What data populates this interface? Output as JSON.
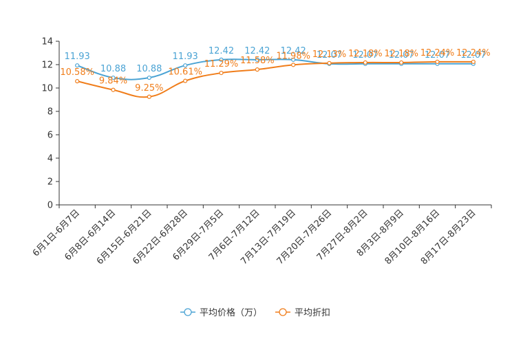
{
  "chart_data": {
    "type": "line",
    "title": "",
    "xlabel": "",
    "ylabel": "",
    "ylim": [
      0,
      14
    ],
    "yticks": [
      0,
      2,
      4,
      6,
      8,
      10,
      12,
      14
    ],
    "grid": false,
    "legend_position": "bottom-center",
    "categories": [
      "6月1日-6月7日",
      "6月8日-6月14日",
      "6月15日-6月21日",
      "6月22日-6月28日",
      "6月29日-7月5日",
      "7月6日-7月12日",
      "7月13日-7月19日",
      "7月20日-7月26日",
      "7月27日-8月2日",
      "8月3日-8月9日",
      "8月10日-8月16日",
      "8月17日-8月23日"
    ],
    "series": [
      {
        "name": "平均价格（万）",
        "color": "#4aa3d4",
        "values": [
          11.93,
          10.88,
          10.88,
          11.93,
          12.42,
          12.42,
          12.42,
          12.07,
          12.07,
          12.07,
          12.07,
          12.07
        ],
        "labels": [
          "11.93",
          "10.88",
          "10.88",
          "11.93",
          "12.42",
          "12.42",
          "12.42",
          "12.07",
          "12.07",
          "12.07",
          "12.07",
          "12.07"
        ]
      },
      {
        "name": "平均折扣",
        "color": "#f07d1a",
        "values": [
          10.58,
          9.84,
          9.25,
          10.61,
          11.29,
          11.58,
          11.98,
          12.13,
          12.18,
          12.18,
          12.24,
          12.24
        ],
        "labels": [
          "10.58%",
          "9.84%",
          "9.25%",
          "10.61%",
          "11.29%",
          "11.58%",
          "11.98%",
          "12.13%",
          "12.18%",
          "12.18%",
          "12.24%",
          "12.24%"
        ]
      }
    ]
  }
}
